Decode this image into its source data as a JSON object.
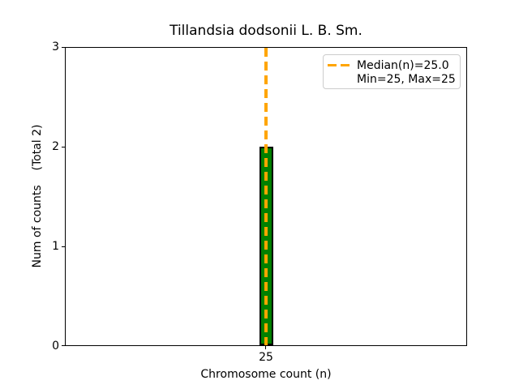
{
  "chart_data": {
    "type": "bar",
    "title": "Tillandsia dodsonii L. B. Sm.",
    "xlabel": "Chromosome count (n)",
    "ylabel": "Num of counts    (Total 2)",
    "categories": [
      25
    ],
    "values": [
      2
    ],
    "xtick_labels": [
      "25"
    ],
    "ytick_labels": [
      "0",
      "1",
      "2",
      "3"
    ],
    "ylim": [
      0,
      3
    ],
    "grid": false,
    "bar_color": "#008000",
    "bar_edge_color": "#000000",
    "median_line": {
      "x": 25.0,
      "color": "#ffa500",
      "style": "dashed"
    },
    "legend": {
      "position": "upper right",
      "entries": [
        {
          "label": "Median(n)=25.0",
          "marker": "orange-dashed-line"
        },
        {
          "label": "Min=25, Max=25",
          "marker": "none"
        }
      ]
    }
  }
}
